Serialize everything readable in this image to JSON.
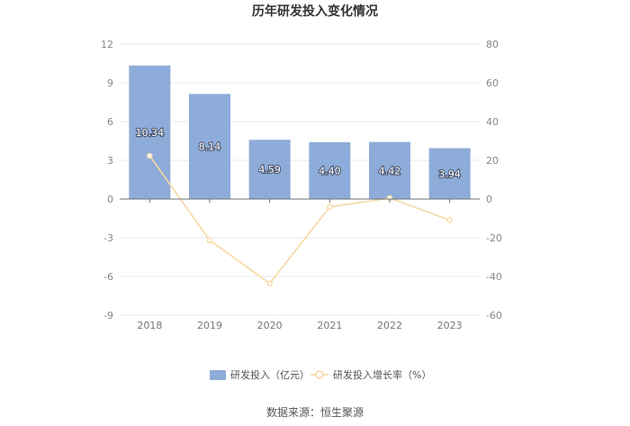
{
  "chart_data": {
    "type": "bar",
    "title": "历年研发投入变化情况",
    "categories": [
      "2018",
      "2019",
      "2020",
      "2021",
      "2022",
      "2023"
    ],
    "series": [
      {
        "name": "研发投入（亿元）",
        "type": "bar",
        "axis": "left",
        "color": "#8eacd9",
        "values": [
          10.34,
          8.14,
          4.59,
          4.4,
          4.42,
          3.94
        ],
        "labels": [
          "10.34",
          "8.14",
          "4.59",
          "4.40",
          "4.42",
          "3.94"
        ]
      },
      {
        "name": "研发投入增长率（%）",
        "type": "line",
        "axis": "right",
        "color": "#f6d9a3",
        "values": [
          22.3,
          -21.3,
          -43.6,
          -4.1,
          0.5,
          -10.9
        ]
      }
    ],
    "y_left": {
      "ylim": [
        -9,
        12
      ],
      "ticks": [
        "12",
        "9",
        "6",
        "3",
        "0",
        "-3",
        "-6",
        "-9"
      ]
    },
    "y_right": {
      "ylim": [
        -60,
        80
      ],
      "ticks": [
        "80",
        "60",
        "40",
        "20",
        "0",
        "-20",
        "-40",
        "-60"
      ]
    },
    "grid": true,
    "legend": "bottom-center",
    "source": "数据来源：恒生聚源"
  }
}
